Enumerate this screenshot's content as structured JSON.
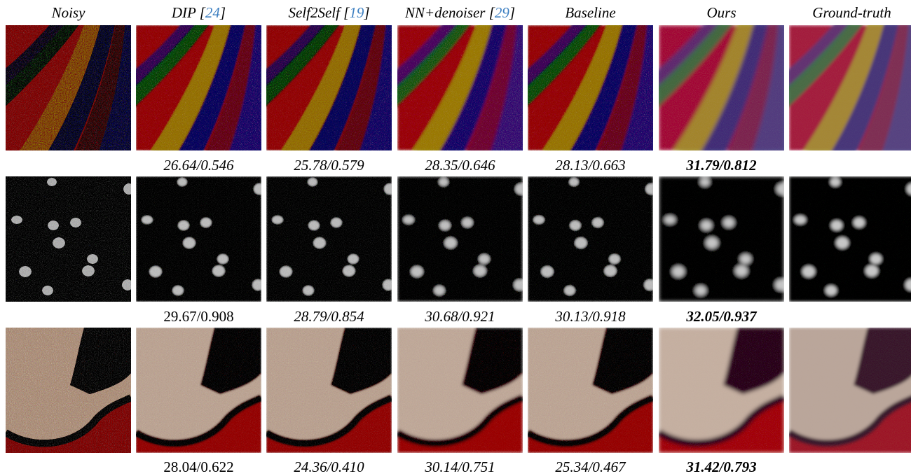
{
  "columns": [
    {
      "label": "Noisy",
      "ref": ""
    },
    {
      "label": "DIP [",
      "ref": "24",
      "suffix": "]"
    },
    {
      "label": "Self2Self [",
      "ref": "19",
      "suffix": "]"
    },
    {
      "label": "NN+denoiser [",
      "ref": "29",
      "suffix": "]"
    },
    {
      "label": "Baseline",
      "ref": ""
    },
    {
      "label": "Ours",
      "ref": ""
    },
    {
      "label": "Ground-truth",
      "ref": ""
    }
  ],
  "rows": [
    {
      "scene": "stripes",
      "metrics": [
        "26.64/0.546",
        "25.78/0.579",
        "28.35/0.646",
        "28.13/0.663",
        "31.79/0.812"
      ],
      "italic": [
        true,
        true,
        true,
        true,
        true
      ],
      "best_index": 4
    },
    {
      "scene": "nuclei",
      "metrics": [
        "29.67/0.908",
        "28.79/0.854",
        "30.68/0.921",
        "30.13/0.918",
        "32.05/0.937"
      ],
      "italic": [
        false,
        true,
        true,
        true,
        true
      ],
      "best_index": 4
    },
    {
      "scene": "fabric",
      "metrics": [
        "28.04/0.622",
        "24.36/0.410",
        "30.14/0.751",
        "25.34/0.467",
        "31.42/0.793"
      ],
      "italic": [
        false,
        true,
        true,
        true,
        true
      ],
      "best_index": 4
    }
  ],
  "colors": {
    "ref_link": "#3d7fc1",
    "stripe_red": "#a52c45",
    "stripe_yellow": "#a69a3c",
    "stripe_green": "#3f7a4c",
    "stripe_blue": "#3e3f86",
    "fabric_skin": "#c7b2a4",
    "fabric_dark": "#3a2130",
    "fabric_red": "#a5222c"
  }
}
